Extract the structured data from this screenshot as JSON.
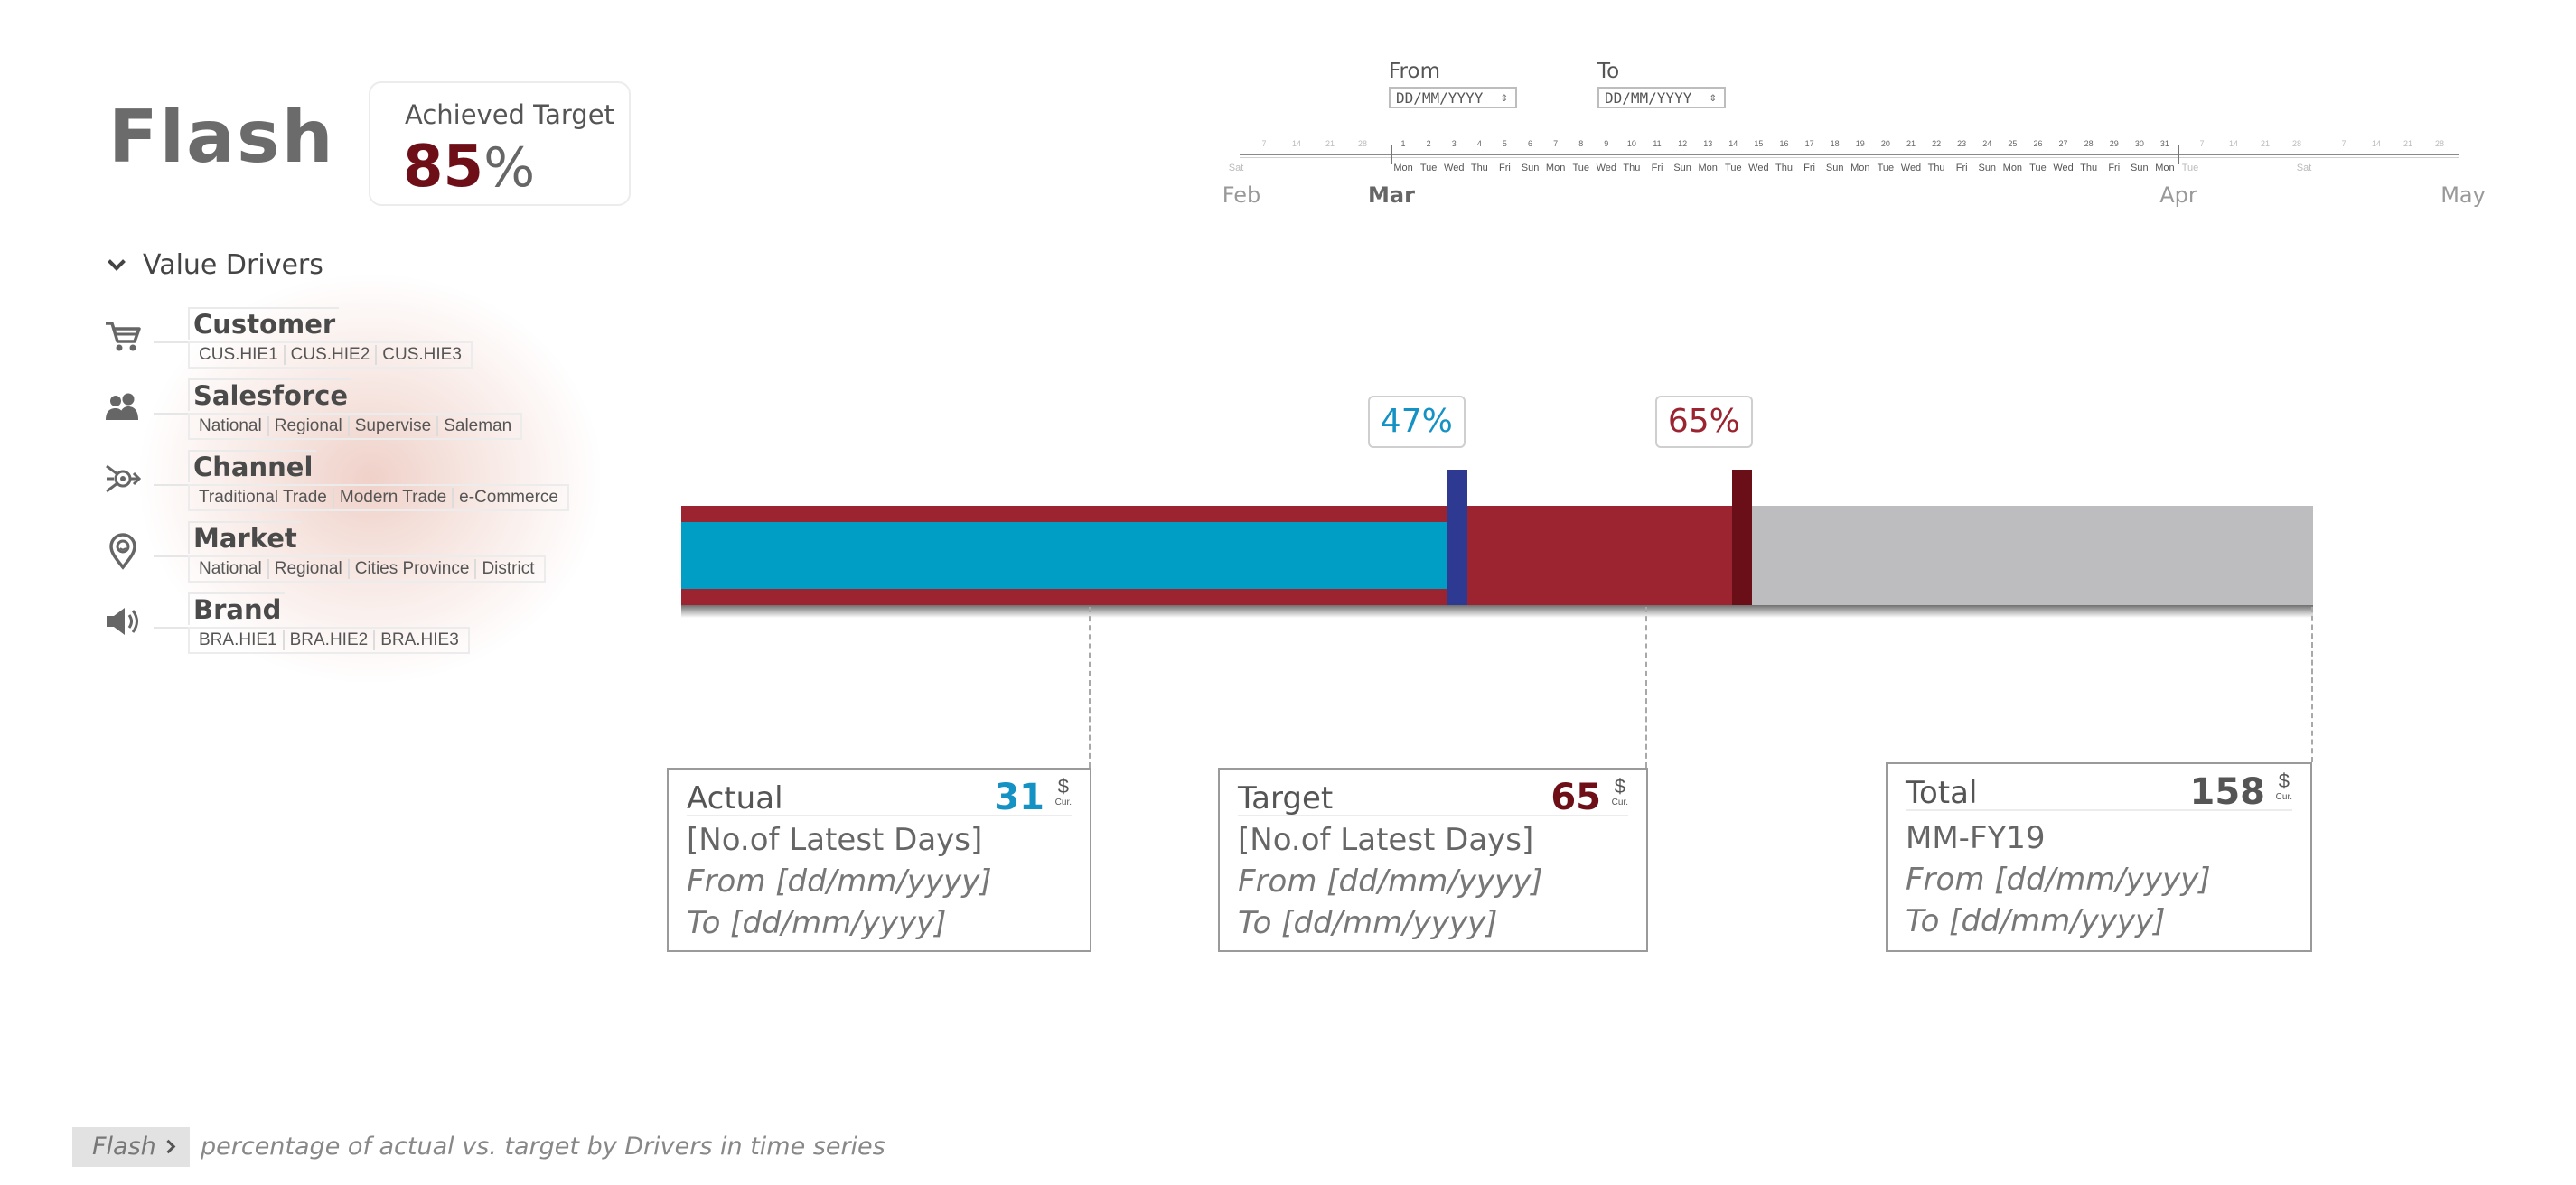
{
  "header": {
    "title": "Flash",
    "kpi": {
      "label": "Achieved Target",
      "value": "85",
      "unit": "%"
    }
  },
  "drivers": {
    "title": "Value Drivers",
    "items": [
      {
        "name": "Customer",
        "icon": "cart-icon",
        "subs": [
          "CUS.HIE1",
          "CUS.HIE2",
          "CUS.HIE3"
        ]
      },
      {
        "name": "Salesforce",
        "icon": "people-icon",
        "subs": [
          "National",
          "Regional",
          "Supervise",
          "Saleman"
        ]
      },
      {
        "name": "Channel",
        "icon": "channel-icon",
        "subs": [
          "Traditional Trade",
          "Modern Trade",
          "e-Commerce"
        ]
      },
      {
        "name": "Market",
        "icon": "location-pin-icon",
        "subs": [
          "National",
          "Regional",
          "Cities Province",
          "District"
        ]
      },
      {
        "name": "Brand",
        "icon": "speaker-icon",
        "subs": [
          "BRA.HIE1",
          "BRA.HIE2",
          "BRA.HIE3"
        ]
      }
    ]
  },
  "date_range": {
    "from_label": "From",
    "to_label": "To",
    "from_placeholder": "DD/MM/YYYY",
    "to_placeholder": "DD/MM/YYYY"
  },
  "timeline": {
    "months": [
      "Feb",
      "Mar",
      "Apr",
      "May"
    ],
    "current_month": "Mar",
    "day_numbers": [
      "1",
      "2",
      "3",
      "4",
      "5",
      "6",
      "7",
      "8",
      "9",
      "10",
      "11",
      "12",
      "13",
      "14",
      "15",
      "16",
      "17",
      "18",
      "19",
      "20",
      "21",
      "22",
      "23",
      "24",
      "25",
      "26",
      "27",
      "28",
      "29",
      "30",
      "31"
    ],
    "weekdays": [
      "Mon",
      "Tue",
      "Wed",
      "Thu",
      "Fri",
      "Sun",
      "Mon",
      "Tue",
      "Wed",
      "Thu",
      "Fri",
      "Sun",
      "Mon",
      "Tue",
      "Wed",
      "Thu",
      "Fri",
      "Sun",
      "Mon",
      "Tue",
      "Wed",
      "Thu",
      "Fri",
      "Sun",
      "Mon",
      "Tue",
      "Wed",
      "Thu",
      "Fri",
      "Sun",
      "Mon"
    ],
    "feb_numbers": [
      "7",
      "14",
      "21",
      "28"
    ],
    "feb_weekday": "Sat",
    "apr_numbers": [
      "7",
      "14",
      "21",
      "28"
    ],
    "apr_weekdays": [
      "Tue",
      "Sat"
    ],
    "may_numbers": [
      "7",
      "14",
      "21",
      "28"
    ]
  },
  "progress": {
    "actual_pct": 47,
    "target_pct": 65,
    "actual_label": "47%",
    "target_label": "65%",
    "colors": {
      "actual": "#009dc4",
      "target": "#9b2430",
      "remaining": "#bdbdbf",
      "actual_marker": "#2e3a92",
      "target_marker": "#6a0f18"
    }
  },
  "cards": {
    "actual": {
      "label": "Actual",
      "value": "31",
      "cur_symbol": "$",
      "cur_text": "Cur.",
      "line1": "[No.of Latest Days]",
      "line2": "From [dd/mm/yyyy]",
      "line3": "To [dd/mm/yyyy]",
      "color": "#1592c4"
    },
    "target": {
      "label": "Target",
      "value": "65",
      "cur_symbol": "$",
      "cur_text": "Cur.",
      "line1": "[No.of Latest Days]",
      "line2": "From [dd/mm/yyyy]",
      "line3": "To [dd/mm/yyyy]",
      "color": "#6e0f18"
    },
    "total": {
      "label": "Total",
      "value": "158",
      "cur_symbol": "$",
      "cur_text": "Cur.",
      "line1": "MM-FY19",
      "line2": "From [dd/mm/yyyy]",
      "line3": "To [dd/mm/yyyy]",
      "color": "#555555"
    }
  },
  "footer": {
    "crumb": "Flash",
    "description": "percentage of actual vs. target by Drivers in time series"
  }
}
